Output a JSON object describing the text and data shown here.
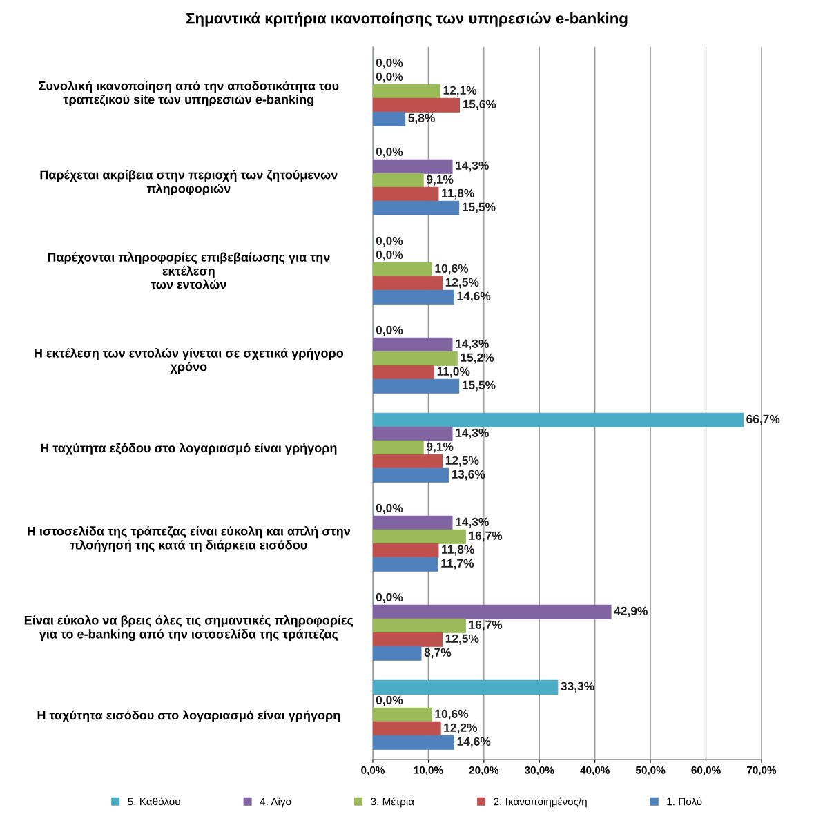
{
  "chart_data": {
    "type": "bar",
    "orientation": "horizontal",
    "title": "Σημαντικά κριτήρια ικανοποίησης των υπηρεσιών e-banking",
    "categories": [
      "Συνολική ικανοποίηση από την αποδοτικότητα του\nτραπεζικού site των υπηρεσιών e-banking",
      "Παρέχεται ακρίβεια στην περιοχή των ζητούμενων\nπληροφοριών",
      "Παρέχονται πληροφορίες επιβεβαίωσης για την\nεκτέλεση\nτων εντολών",
      "Η εκτέλεση των εντολών γίνεται σε σχετικά γρήγορο\nχρόνο",
      "Η ταχύτητα εξόδου στο λογαριασμό είναι γρήγορη",
      "Η ιστοσελίδα της τράπεζας είναι εύκολη και απλή στην\nπλοήγησή της κατά τη διάρκεια εισόδου",
      "Είναι εύκολο να βρεις όλες τις σημαντικές πληροφορίες\nγια το e-banking από την ιστοσελίδα της τράπεζας",
      "Η ταχύτητα εισόδου στο λογαριασμό είναι γρήγορη"
    ],
    "series": [
      {
        "name": "5. Καθόλου",
        "color": "#4bacc6",
        "values": [
          0.0,
          0.0,
          0.0,
          0.0,
          66.7,
          0.0,
          0.0,
          33.3
        ],
        "value_labels": [
          "0,0%",
          "0,0%",
          "0,0%",
          "0,0%",
          "66,7%",
          "0,0%",
          "0,0%",
          "33,3%"
        ]
      },
      {
        "name": "4. Λίγο",
        "color": "#8064a2",
        "values": [
          0.0,
          14.3,
          0.0,
          14.3,
          14.3,
          14.3,
          42.9,
          0.0
        ],
        "value_labels": [
          "0,0%",
          "14,3%",
          "0,0%",
          "14,3%",
          "14,3%",
          "14,3%",
          "42,9%",
          "0,0%"
        ]
      },
      {
        "name": "3. Μέτρια",
        "color": "#9bbb59",
        "values": [
          12.1,
          9.1,
          10.6,
          15.2,
          9.1,
          16.7,
          16.7,
          10.6
        ],
        "value_labels": [
          "12,1%",
          "9,1%",
          "10,6%",
          "15,2%",
          "9,1%",
          "16,7%",
          "16,7%",
          "10,6%"
        ]
      },
      {
        "name": "2. Ικανοποιημένος/η",
        "color": "#c0504d",
        "values": [
          15.6,
          11.8,
          12.5,
          11.0,
          12.5,
          11.8,
          12.5,
          12.2
        ],
        "value_labels": [
          "15,6%",
          "11,8%",
          "12,5%",
          "11,0%",
          "12,5%",
          "11,8%",
          "12,5%",
          "12,2%"
        ]
      },
      {
        "name": "1. Πολύ",
        "color": "#4f81bd",
        "values": [
          5.8,
          15.5,
          14.6,
          15.5,
          13.6,
          11.7,
          8.7,
          14.6
        ],
        "value_labels": [
          "5,8%",
          "15,5%",
          "14,6%",
          "15,5%",
          "13,6%",
          "11,7%",
          "8,7%",
          "14,6%"
        ]
      }
    ],
    "xlim": [
      0,
      70
    ],
    "xticks": [
      {
        "value": 0,
        "label": "0,0%"
      },
      {
        "value": 10,
        "label": "10,0%"
      },
      {
        "value": 20,
        "label": "20,0%"
      },
      {
        "value": 30,
        "label": "30,0%"
      },
      {
        "value": 40,
        "label": "40,0%"
      },
      {
        "value": 50,
        "label": "50,0%"
      },
      {
        "value": 60,
        "label": "60,0%"
      },
      {
        "value": 70,
        "label": "70,0%"
      }
    ],
    "grid": "x",
    "legend": "bottom"
  }
}
